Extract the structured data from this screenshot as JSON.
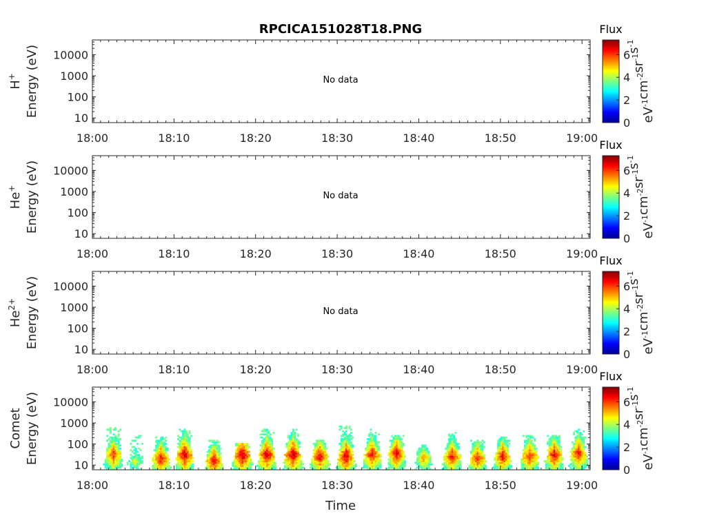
{
  "chart_data": {
    "type": "heatmap",
    "title": "RPCICA151028T18.PNG",
    "xlabel": "Time",
    "x_ticks": [
      "18:00",
      "18:10",
      "18:20",
      "18:30",
      "18:40",
      "18:50",
      "19:00"
    ],
    "xlim_minutes": [
      0,
      61
    ],
    "y_scale": "log",
    "y_ticks": [
      "10",
      "100",
      "1000",
      "10000"
    ],
    "y_tick_values": [
      10,
      100,
      1000,
      10000
    ],
    "ylim": [
      6,
      50000
    ],
    "colorbar": {
      "title": "Flux",
      "label": "eV-1cm-2sr-1s-1",
      "ticks": [
        "0",
        "2",
        "4",
        "6"
      ],
      "range": [
        0,
        7.3
      ],
      "colormap": "jet"
    },
    "panels": [
      {
        "species": "H",
        "charge": "+",
        "ylabel": "Energy (eV)",
        "status": "No data"
      },
      {
        "species": "He",
        "charge": "+",
        "ylabel": "Energy (eV)",
        "status": "No data"
      },
      {
        "species": "He",
        "charge": "2+",
        "ylabel": "Energy (eV)",
        "status": "No data"
      },
      {
        "species": "Comet",
        "charge": "",
        "ylabel": "Energy (eV)",
        "status": "",
        "bursts": [
          {
            "t": 2.5,
            "flux_peak": 6.2,
            "e_peak": 30,
            "e_max": 600
          },
          {
            "t": 5.2,
            "flux_peak": 4.5,
            "e_peak": 15,
            "e_max": 250
          },
          {
            "t": 8.3,
            "flux_peak": 6.5,
            "e_peak": 20,
            "e_max": 200
          },
          {
            "t": 11.2,
            "flux_peak": 6.8,
            "e_peak": 30,
            "e_max": 450
          },
          {
            "t": 14.8,
            "flux_peak": 6.5,
            "e_peak": 15,
            "e_max": 150
          },
          {
            "t": 18.3,
            "flux_peak": 7.0,
            "e_peak": 30,
            "e_max": 100
          },
          {
            "t": 21.3,
            "flux_peak": 6.8,
            "e_peak": 30,
            "e_max": 450
          },
          {
            "t": 24.5,
            "flux_peak": 6.9,
            "e_peak": 30,
            "e_max": 500
          },
          {
            "t": 27.8,
            "flux_peak": 6.6,
            "e_peak": 25,
            "e_max": 150
          },
          {
            "t": 31.0,
            "flux_peak": 6.8,
            "e_peak": 25,
            "e_max": 700
          },
          {
            "t": 34.2,
            "flux_peak": 6.5,
            "e_peak": 30,
            "e_max": 450
          },
          {
            "t": 37.2,
            "flux_peak": 6.6,
            "e_peak": 35,
            "e_max": 250
          },
          {
            "t": 40.5,
            "flux_peak": 5.5,
            "e_peak": 20,
            "e_max": 80
          },
          {
            "t": 44.0,
            "flux_peak": 6.4,
            "e_peak": 25,
            "e_max": 350
          },
          {
            "t": 47.1,
            "flux_peak": 6.3,
            "e_peak": 20,
            "e_max": 150
          },
          {
            "t": 50.2,
            "flux_peak": 6.5,
            "e_peak": 25,
            "e_max": 200
          },
          {
            "t": 53.5,
            "flux_peak": 6.4,
            "e_peak": 25,
            "e_max": 250
          },
          {
            "t": 56.5,
            "flux_peak": 6.6,
            "e_peak": 30,
            "e_max": 250
          },
          {
            "t": 59.5,
            "flux_peak": 6.5,
            "e_peak": 35,
            "e_max": 500
          }
        ]
      }
    ]
  }
}
